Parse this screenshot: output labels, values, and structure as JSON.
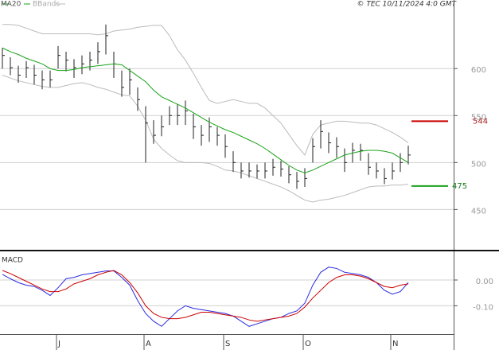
{
  "chart_data": [
    {
      "type": "ohlc",
      "source": "© TEC 10/11/2024 4:0 GMT",
      "categories": [
        null,
        null,
        null,
        null,
        null,
        null,
        null,
        "J",
        null,
        null,
        null,
        null,
        null,
        null,
        null,
        null,
        null,
        null,
        "A",
        null,
        null,
        null,
        null,
        null,
        null,
        null,
        null,
        null,
        "S",
        null,
        null,
        null,
        null,
        null,
        null,
        null,
        null,
        null,
        "O",
        null,
        null,
        null,
        null,
        null,
        null,
        null,
        null,
        null,
        null,
        "N",
        null,
        null
      ],
      "high": [
        622,
        612,
        603,
        608,
        604,
        598,
        598,
        624,
        618,
        610,
        614,
        618,
        628,
        647,
        618,
        598,
        600,
        580,
        560,
        545,
        550,
        560,
        562,
        566,
        552,
        540,
        548,
        538,
        530,
        512,
        500,
        500,
        498,
        500,
        504,
        502,
        496,
        490,
        494,
        526,
        545,
        532,
        527,
        515,
        521,
        520,
        510,
        500,
        494,
        500,
        510,
        518
      ],
      "low": [
        600,
        593,
        585,
        590,
        583,
        578,
        580,
        600,
        597,
        590,
        594,
        598,
        605,
        615,
        590,
        570,
        572,
        555,
        500,
        520,
        528,
        540,
        540,
        540,
        525,
        518,
        522,
        518,
        505,
        490,
        483,
        484,
        483,
        483,
        486,
        485,
        478,
        472,
        474,
        500,
        515,
        510,
        505,
        490,
        500,
        502,
        487,
        483,
        477,
        482,
        490,
        498
      ],
      "close": [
        614,
        601,
        593,
        601,
        593,
        588,
        588,
        614,
        609,
        601,
        605,
        609,
        618,
        635,
        605,
        580,
        588,
        567,
        542,
        529,
        538,
        550,
        550,
        555,
        538,
        529,
        538,
        529,
        517,
        500,
        491,
        491,
        491,
        491,
        495,
        493,
        487,
        480,
        483,
        517,
        533,
        521,
        517,
        500,
        513,
        513,
        495,
        491,
        483,
        491,
        500,
        508
      ],
      "bar_color": "#222222",
      "ma": {
        "name": "MA20",
        "color": "#1aa31a",
        "values": [
          622,
          618,
          615,
          611,
          608,
          605,
          600,
          598,
          598,
          599,
          601,
          602,
          603,
          604,
          605,
          604,
          598,
          592,
          586,
          577,
          570,
          566,
          562,
          558,
          553,
          548,
          543,
          539,
          535,
          532,
          528,
          524,
          520,
          515,
          509,
          503,
          497,
          492,
          489,
          492,
          496,
          500,
          504,
          508,
          510,
          512,
          513,
          513,
          512,
          510,
          505,
          500
        ]
      },
      "bands": {
        "name": "BBands",
        "color": "#bbbbbb",
        "upper": [
          647,
          647,
          646,
          643,
          640,
          637,
          637,
          637,
          637,
          637,
          637,
          637,
          636,
          637,
          640,
          641,
          642,
          644,
          645,
          646,
          646,
          635,
          620,
          609,
          595,
          580,
          566,
          563,
          565,
          567,
          565,
          563,
          563,
          558,
          550,
          542,
          530,
          518,
          508,
          530,
          540,
          542,
          544,
          544,
          543,
          542,
          542,
          540,
          536,
          532,
          527,
          521
        ],
        "lower": [
          593,
          590,
          587,
          585,
          583,
          581,
          580,
          580,
          582,
          584,
          585,
          583,
          580,
          578,
          575,
          572,
          571,
          560,
          545,
          525,
          515,
          508,
          502,
          500,
          500,
          500,
          499,
          496,
          492,
          491,
          489,
          486,
          483,
          480,
          477,
          474,
          470,
          465,
          460,
          458,
          460,
          461,
          463,
          465,
          468,
          471,
          474,
          475,
          475,
          476,
          476,
          477
        ]
      },
      "levels": [
        {
          "value": 544,
          "color": "#cc0000"
        },
        {
          "value": 475,
          "color": "#1aa31a"
        }
      ],
      "ylim": [
        408,
        673
      ],
      "yticks": [
        450,
        500,
        550,
        600
      ],
      "grid": true
    },
    {
      "type": "line",
      "title": "MACD",
      "series": [
        {
          "color": "#2a2adf",
          "values": [
            0.022,
            0.005,
            -0.01,
            -0.02,
            -0.025,
            -0.04,
            -0.06,
            -0.03,
            0.005,
            0.01,
            0.02,
            0.025,
            0.03,
            0.035,
            0.035,
            0.01,
            -0.02,
            -0.08,
            -0.13,
            -0.16,
            -0.18,
            -0.15,
            -0.12,
            -0.1,
            -0.11,
            -0.115,
            -0.12,
            -0.125,
            -0.13,
            -0.14,
            -0.16,
            -0.18,
            -0.17,
            -0.16,
            -0.15,
            -0.145,
            -0.13,
            -0.12,
            -0.09,
            -0.02,
            0.03,
            0.05,
            0.045,
            0.03,
            0.025,
            0.02,
            0.01,
            -0.01,
            -0.04,
            -0.055,
            -0.045,
            -0.01
          ]
        },
        {
          "color": "#cc0000",
          "values": [
            0.037,
            0.025,
            0.01,
            -0.005,
            -0.02,
            -0.035,
            -0.045,
            -0.045,
            -0.035,
            -0.015,
            -0.005,
            0.005,
            0.02,
            0.03,
            0.037,
            0.02,
            -0.01,
            -0.05,
            -0.1,
            -0.13,
            -0.145,
            -0.15,
            -0.15,
            -0.145,
            -0.135,
            -0.125,
            -0.125,
            -0.13,
            -0.135,
            -0.14,
            -0.145,
            -0.155,
            -0.16,
            -0.155,
            -0.15,
            -0.145,
            -0.14,
            -0.13,
            -0.105,
            -0.07,
            -0.04,
            -0.01,
            0.01,
            0.02,
            0.02,
            0.015,
            0.005,
            -0.01,
            -0.025,
            -0.03,
            -0.02,
            -0.015
          ]
        }
      ],
      "ylim": [
        -0.21,
        0.105
      ],
      "yticks": [
        {
          "value": 0,
          "label": "0.00"
        },
        {
          "value": -0.1,
          "label": "-0.10"
        }
      ],
      "grid": true
    }
  ]
}
